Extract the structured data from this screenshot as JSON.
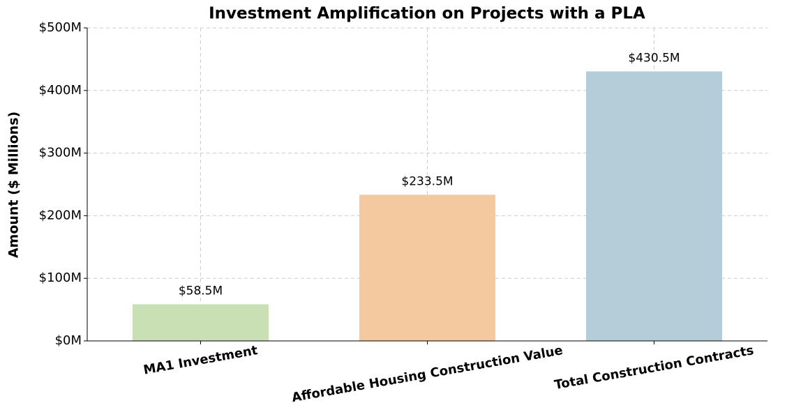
{
  "chart_data": {
    "type": "bar",
    "title": "Investment Amplification on Projects with a PLA",
    "y_label": "Amount ($ Millions)",
    "categories": [
      "MA1 Investment",
      "Affordable Housing Construction Value",
      "Total Construction Contracts"
    ],
    "values": [
      58.5,
      233.5,
      430.5
    ],
    "value_labels": [
      "$58.5M",
      "$233.5M",
      "$430.5M"
    ],
    "colors": [
      "#c9e0b4",
      "#f5c9a0",
      "#b4cdd8"
    ],
    "ylim": [
      0,
      500
    ],
    "yticks": [
      {
        "value": 0,
        "label": "$0M"
      },
      {
        "value": 100,
        "label": "$100M"
      },
      {
        "value": 200,
        "label": "$200M"
      },
      {
        "value": 300,
        "label": "$300M"
      },
      {
        "value": 400,
        "label": "$400M"
      },
      {
        "value": 500,
        "label": "$500M"
      }
    ],
    "grid": true
  }
}
